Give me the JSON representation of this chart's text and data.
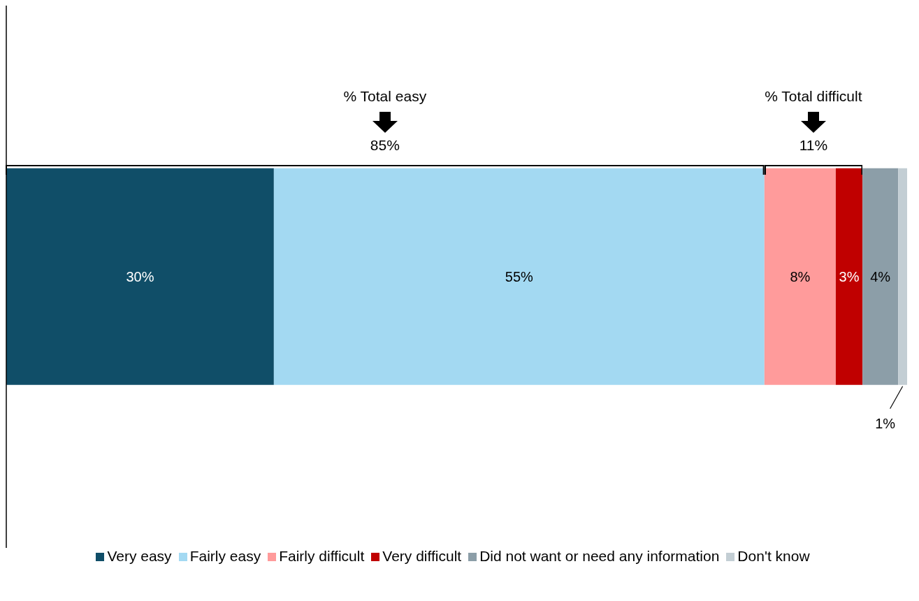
{
  "chart_data": {
    "type": "bar",
    "orientation": "horizontal",
    "stacked": true,
    "categories": [
      null
    ],
    "series": [
      {
        "name": "Very easy",
        "color": "#104e68",
        "values": [
          30
        ],
        "value_labels": [
          "30%"
        ]
      },
      {
        "name": "Fairly easy",
        "color": "#a3d9f2",
        "values": [
          55
        ],
        "value_labels": [
          "55%"
        ]
      },
      {
        "name": "Fairly difficult",
        "color": "#ff9b9b",
        "values": [
          8
        ],
        "value_labels": [
          "8%"
        ]
      },
      {
        "name": "Very difficult",
        "color": "#c00000",
        "values": [
          3
        ],
        "value_labels": [
          "3%"
        ]
      },
      {
        "name": "Did not want or need any information",
        "color": "#8c9ea8",
        "values": [
          4
        ],
        "value_labels": [
          "4%"
        ]
      },
      {
        "name": "Don't know",
        "color": "#c3ced4",
        "values": [
          1
        ],
        "value_labels": [
          "1%"
        ]
      }
    ],
    "annotations": [
      "% Total easy",
      "85%",
      "% Total difficult",
      "11%"
    ],
    "legend": "bottom",
    "grid": false
  }
}
